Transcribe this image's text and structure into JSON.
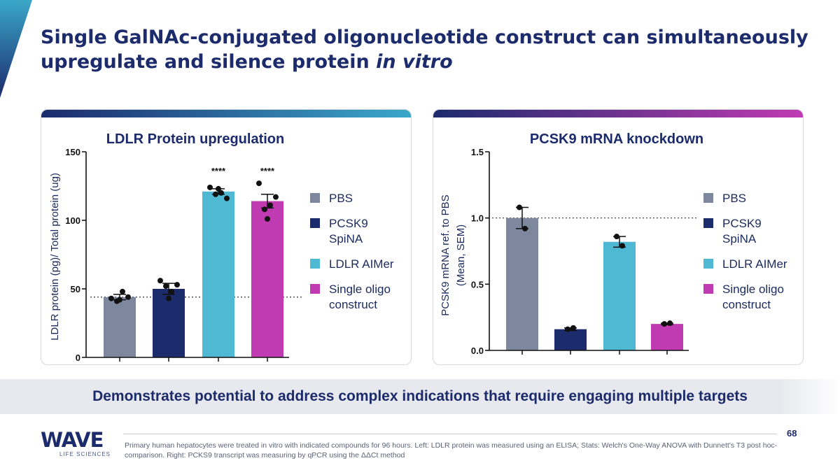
{
  "slide": {
    "title": "Single GalNAc-conjugated oligonucleotide construct can simultaneously upregulate and silence protein",
    "title_italic": "in vitro",
    "banner_text": "Demonstrates potential to address complex indications that require engaging multiple targets",
    "footnote": "Primary human hepatocytes were treated in vitro with indicated compounds for 96 hours. Left: LDLR protein was measured using an ELISA; Stats: Welch's One-Way ANOVA with Dunnett's T3 post hoc-comparison. Right: PCKS9 transcript was measuring by qPCR using the ΔΔCt method",
    "page_number": "68",
    "logo": {
      "word": "WAVE",
      "sub": "LIFE SCIENCES",
      "colors": {
        "text": "#1c2b6b",
        "accent": "#3aa7c9"
      }
    }
  },
  "legend_items": [
    {
      "label": "PBS",
      "color": "#7d879e"
    },
    {
      "label": "PCSK9 SpiNA",
      "color": "#1c2b6b"
    },
    {
      "label": "LDLR AIMer",
      "color": "#4fb9d3"
    },
    {
      "label": "Single oligo construct",
      "color": "#c03ab2"
    }
  ],
  "chart_data": [
    {
      "type": "bar",
      "title": "LDLR Protein upregulation",
      "ylabel": "LDLR protein (pg)/ Total protein (ug)",
      "xlabel": "",
      "ylim": [
        0,
        150
      ],
      "yticks": [
        "0",
        "50",
        "100",
        "150"
      ],
      "categories": [
        "PBS",
        "PCSK9 SpiNA",
        "LDLR AIMer",
        "Single oligo construct"
      ],
      "values": [
        44,
        50,
        121,
        114
      ],
      "errors": [
        2,
        4,
        2,
        5
      ],
      "colors": [
        "#7d879e",
        "#1c2b6b",
        "#4fb9d3",
        "#c03ab2"
      ],
      "points": [
        [
          43,
          41,
          48,
          44,
          42
        ],
        [
          56,
          52,
          48,
          53,
          43
        ],
        [
          124,
          119,
          120,
          116,
          123
        ],
        [
          127,
          108,
          111,
          117,
          101
        ]
      ],
      "significance": [
        "",
        "",
        "****",
        "****"
      ],
      "reference_line": 44
    },
    {
      "type": "bar",
      "title": "PCSK9 mRNA knockdown",
      "ylabel": "PCSK9 mRNA ref. to PBS",
      "ylabel2": "(Mean, SEM)",
      "xlabel": "",
      "ylim": [
        0,
        1.5
      ],
      "yticks": [
        "0.0",
        "0.5",
        "1.0",
        "1.5"
      ],
      "categories": [
        "PBS",
        "PCSK9 SpiNA",
        "LDLR AIMer",
        "Single oligo construct"
      ],
      "values": [
        1.0,
        0.16,
        0.82,
        0.2
      ],
      "errors": [
        0.08,
        0.01,
        0.04,
        0.005
      ],
      "colors": [
        "#7d879e",
        "#1c2b6b",
        "#4fb9d3",
        "#c03ab2"
      ],
      "points": [
        [
          1.08,
          0.92
        ],
        [
          0.16,
          0.17
        ],
        [
          0.86,
          0.79
        ],
        [
          0.2,
          0.205
        ]
      ],
      "significance": [
        "",
        "",
        "",
        ""
      ],
      "reference_line": 1.0
    }
  ]
}
